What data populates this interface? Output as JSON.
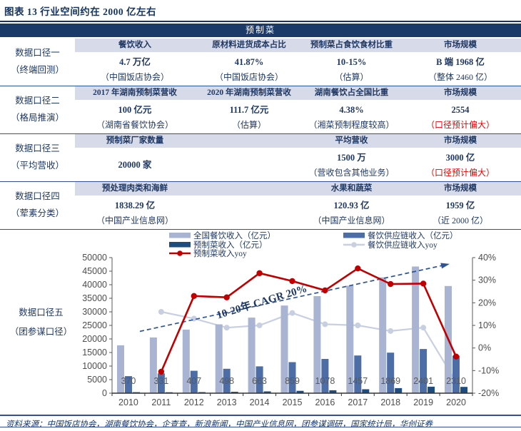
{
  "page": {
    "title": "图表 13  行业空间约在 2000 亿左右",
    "footer": "资料来源：中国饭店协会，湖南餐饮协会，企查查，新浪新闻，中国产业信息网，团参谋调研，国家统计局，华创证券"
  },
  "table": {
    "title": "预制菜",
    "sections": [
      {
        "label": "数据口径一",
        "sublabel": "（终端回测）",
        "columns": [
          {
            "header": "餐饮收入",
            "value": "4.7 万亿",
            "note": "（中国饭店协会）"
          },
          {
            "header": "原材料进货成本占比",
            "value": "41.87%",
            "note": "（中国饭店协会）"
          },
          {
            "header": "预制菜占食饮食材比重",
            "value": "10-15%",
            "note": "（估算）"
          },
          {
            "header": "市场规模",
            "value": "B 端 1968 亿",
            "note": "（整体 2460 亿）"
          }
        ]
      },
      {
        "label": "数据口径二",
        "sublabel": "（格局推演）",
        "columns": [
          {
            "header": "2017 年湖南预制菜营收",
            "value": "100 亿元",
            "note": "（湖南省餐饮协会）"
          },
          {
            "header": "2020 年湖南预制菜营收",
            "value": "111.7 亿元",
            "note": "（估算）"
          },
          {
            "header": "湖南餐饮占全国比重",
            "value": "4.38%",
            "note": "（湘菜预制程度较高）"
          },
          {
            "header": "市场规模",
            "value": "2554",
            "note": "（口径预计偏大）",
            "note_red": true
          }
        ]
      },
      {
        "label": "数据口径三",
        "sublabel": "（平均营收）",
        "columns": [
          {
            "header": "预制菜厂家数量",
            "value": "20000 家",
            "note": ""
          },
          {
            "header": "",
            "value": "",
            "note": ""
          },
          {
            "header": "平均营收",
            "value": "1500 万",
            "note": "（营收包含其他业务）"
          },
          {
            "header": "市场规模",
            "value": "3000 亿",
            "note": "（口径预计偏大）",
            "note_red": true
          }
        ]
      },
      {
        "label": "数据口径四",
        "sublabel": "（荤素分类）",
        "columns": [
          {
            "header": "预处理肉类和海鲜",
            "value": "1838.29 亿",
            "note": "（中国产业信息网）"
          },
          {
            "header": "",
            "value": "",
            "note": ""
          },
          {
            "header": "水果和蔬菜",
            "value": "120.93 亿",
            "note": "（中国产业信息网）"
          },
          {
            "header": "市场规模",
            "value": "1959 亿",
            "note": "（近 2000 亿）"
          }
        ]
      }
    ]
  },
  "chart_section": {
    "label": "数据口径五",
    "sublabel": "（团参谋口径）"
  },
  "chart_data": {
    "type": "bar+line combo",
    "categories": [
      "2010",
      "2011",
      "2012",
      "2013",
      "2014",
      "2015",
      "2016",
      "2017",
      "2018",
      "2019",
      "2020"
    ],
    "left_axis": {
      "min": 0,
      "max": 50000,
      "step": 5000
    },
    "right_axis": {
      "min": -20,
      "max": 40,
      "step": 10,
      "suffix": "%"
    },
    "series": [
      {
        "name": "全国餐饮收入（亿元）",
        "type": "bar",
        "axis": "left",
        "group_index": 0,
        "color": "#a9b3d2",
        "values": [
          17648,
          20543,
          23448,
          25392,
          27860,
          32310,
          35799,
          39644,
          42716,
          46721,
          39527
        ],
        "legend": {
          "col": 0,
          "row": 0
        }
      },
      {
        "name": "预制菜收入（亿元）",
        "type": "bar",
        "axis": "left",
        "group_index": 2,
        "color": "#1e4c7e",
        "values": [
          370,
          331,
          407,
          498,
          663,
          859,
          1078,
          1457,
          1869,
          2401,
          2310
        ],
        "data_labels": true,
        "legend": {
          "col": 0,
          "row": 1
        }
      },
      {
        "name": "餐饮供应链收入（亿元）",
        "type": "bar",
        "axis": "left",
        "group_index": 1,
        "color": "#4d6da6",
        "values": [
          6300,
          7300,
          8260,
          9000,
          9900,
          11440,
          12640,
          13900,
          14940,
          16290,
          13850
        ],
        "legend": {
          "col": 1,
          "row": 0
        }
      },
      {
        "name": "预制菜收入yoy",
        "type": "line",
        "axis": "right",
        "color": "#c00000",
        "values": [
          null,
          -10.5,
          23.0,
          22.4,
          33.1,
          29.6,
          25.5,
          35.2,
          28.3,
          28.5,
          -3.8
        ],
        "legend": {
          "col": 0,
          "row": 2
        }
      },
      {
        "name": "餐饮供应链收入yoy",
        "type": "line",
        "axis": "right",
        "color": "#c7cfe0",
        "values": [
          null,
          16,
          13,
          9,
          10,
          15.5,
          10.5,
          10,
          7.5,
          9,
          -15
        ],
        "legend": {
          "col": 1,
          "row": 1
        }
      }
    ],
    "annotation": {
      "text": "10-20年 CAGR 20%",
      "arrow_from": {
        "index": 0.35,
        "value": 22800
      },
      "arrow_to": {
        "index": 9.74,
        "value": 47500
      },
      "text_at": {
        "index": 4.1,
        "value": 32500,
        "rotate": -17
      }
    },
    "legend_position": "top",
    "grid": false
  },
  "colors": {
    "navy_header": "#1b3a68",
    "lavender_strip": "#d7dbe9",
    "table_text": "#1f3864",
    "red_note": "#e60000",
    "rule": "#2f5496",
    "arrow": "#2f5496",
    "axis_text": "#4d4d4d"
  }
}
